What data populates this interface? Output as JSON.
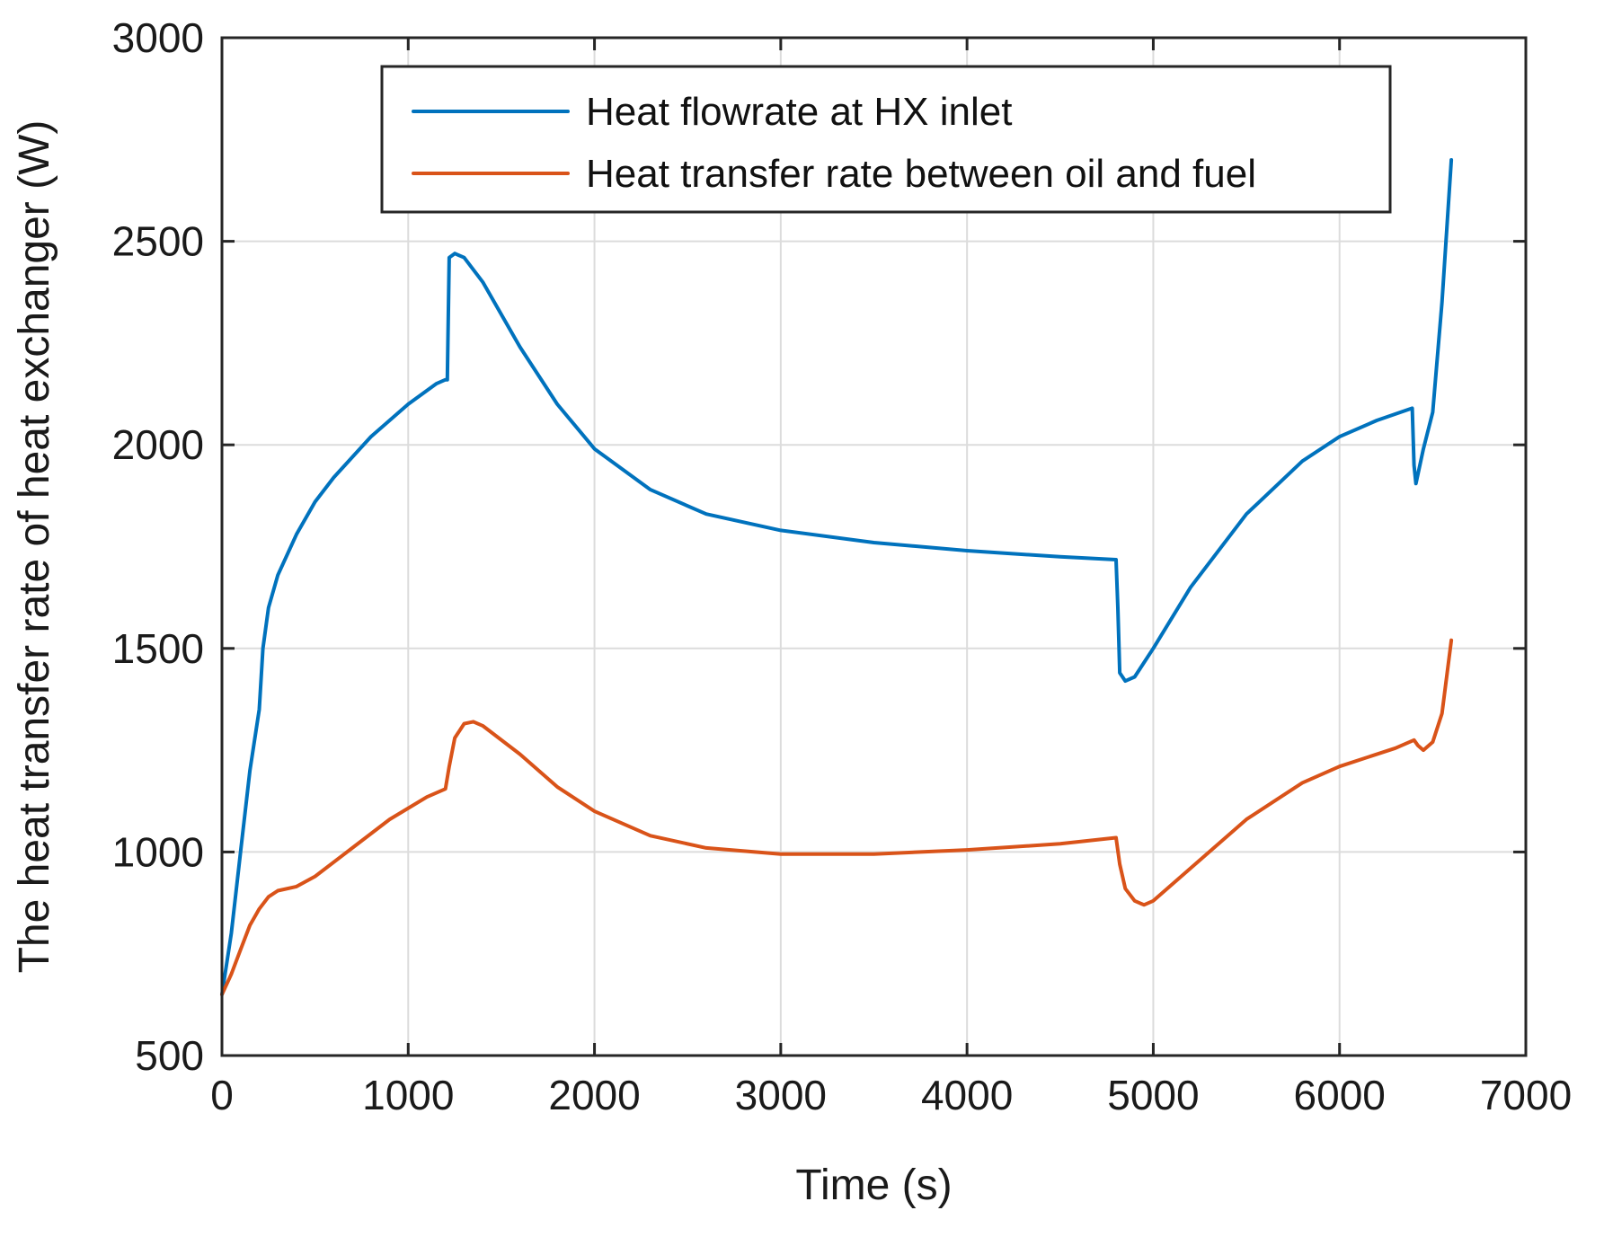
{
  "chart_data": {
    "type": "line",
    "title": "",
    "xlabel": "Time (s)",
    "ylabel": "The heat transfer rate of heat exchanger (W)",
    "xlim": [
      0,
      7000
    ],
    "ylim": [
      500,
      3000
    ],
    "xticks": [
      0,
      1000,
      2000,
      3000,
      4000,
      5000,
      6000,
      7000
    ],
    "yticks": [
      500,
      1000,
      1500,
      2000,
      2500,
      3000
    ],
    "xtick_labels": [
      "0",
      "1000",
      "2000",
      "3000",
      "4000",
      "5000",
      "6000",
      "7000"
    ],
    "ytick_labels": [
      "500",
      "1000",
      "1500",
      "2000",
      "2500",
      "3000"
    ],
    "grid": true,
    "legend_position": "top-center",
    "series": [
      {
        "name": "Heat flowrate at HX inlet",
        "color": "#0072bd",
        "x": [
          0,
          50,
          100,
          150,
          200,
          220,
          250,
          300,
          400,
          500,
          600,
          800,
          1000,
          1150,
          1200,
          1210,
          1220,
          1250,
          1300,
          1400,
          1600,
          1800,
          2000,
          2300,
          2600,
          3000,
          3500,
          4000,
          4500,
          4800,
          4810,
          4820,
          4850,
          4900,
          5000,
          5200,
          5500,
          5800,
          6000,
          6200,
          6390,
          6400,
          6410,
          6450,
          6500,
          6550,
          6600
        ],
        "y": [
          650,
          800,
          1000,
          1200,
          1350,
          1500,
          1600,
          1680,
          1780,
          1860,
          1920,
          2020,
          2100,
          2150,
          2160,
          2160,
          2460,
          2470,
          2460,
          2400,
          2240,
          2100,
          1990,
          1890,
          1830,
          1790,
          1760,
          1740,
          1725,
          1718,
          1600,
          1440,
          1420,
          1430,
          1500,
          1650,
          1830,
          1960,
          2020,
          2060,
          2090,
          1950,
          1905,
          1990,
          2080,
          2350,
          2700
        ]
      },
      {
        "name": "Heat transfer rate between oil and fuel",
        "color": "#d95319",
        "x": [
          0,
          50,
          100,
          150,
          200,
          250,
          300,
          400,
          500,
          700,
          900,
          1100,
          1200,
          1220,
          1250,
          1300,
          1350,
          1400,
          1600,
          1800,
          2000,
          2300,
          2600,
          3000,
          3500,
          4000,
          4500,
          4800,
          4820,
          4850,
          4900,
          4950,
          5000,
          5200,
          5500,
          5800,
          6000,
          6300,
          6400,
          6420,
          6450,
          6500,
          6550,
          6600
        ],
        "y": [
          650,
          700,
          760,
          820,
          860,
          890,
          905,
          915,
          940,
          1010,
          1080,
          1135,
          1155,
          1210,
          1280,
          1315,
          1320,
          1310,
          1240,
          1160,
          1100,
          1040,
          1010,
          995,
          995,
          1005,
          1020,
          1035,
          970,
          910,
          880,
          870,
          880,
          960,
          1080,
          1170,
          1210,
          1255,
          1275,
          1262,
          1250,
          1270,
          1340,
          1520
        ]
      }
    ]
  }
}
